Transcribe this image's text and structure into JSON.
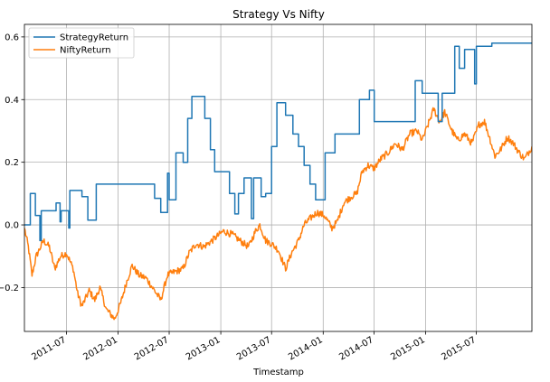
{
  "chart_data": {
    "type": "line",
    "title": "Strategy Vs Nifty",
    "xlabel": "Timestamp",
    "ylabel": "",
    "xlim": [
      "2011-02-01",
      "2016-01-15"
    ],
    "ylim": [
      -0.34,
      0.64
    ],
    "grid": true,
    "legend_position": "top-left",
    "x_tick_labels": [
      "2011-07",
      "2012-01",
      "2012-07",
      "2013-01",
      "2013-07",
      "2014-01",
      "2014-07",
      "2015-01",
      "2015-07"
    ],
    "x_tick_dates": [
      "2011-07-01",
      "2012-01-01",
      "2012-07-01",
      "2013-01-01",
      "2013-07-01",
      "2014-01-01",
      "2014-07-01",
      "2015-01-01",
      "2015-07-01"
    ],
    "y_ticks": [
      -0.2,
      0.0,
      0.2,
      0.4,
      0.6
    ],
    "y_tick_labels": [
      "−0.2",
      "0.0",
      "0.2",
      "0.4",
      "0.6"
    ],
    "series": [
      {
        "name": "StrategyReturn",
        "color": "#1f77b4",
        "step": true,
        "points": [
          [
            "2011-02-01",
            0.0
          ],
          [
            "2011-02-22",
            0.1
          ],
          [
            "2011-03-12",
            0.03
          ],
          [
            "2011-03-28",
            -0.05
          ],
          [
            "2011-04-02",
            0.045
          ],
          [
            "2011-05-25",
            0.07
          ],
          [
            "2011-06-08",
            0.01
          ],
          [
            "2011-06-12",
            0.045
          ],
          [
            "2011-06-30",
            0.045
          ],
          [
            "2011-07-09",
            -0.01
          ],
          [
            "2011-07-13",
            0.11
          ],
          [
            "2011-08-25",
            0.09
          ],
          [
            "2011-09-15",
            0.015
          ],
          [
            "2011-10-15",
            0.13
          ],
          [
            "2012-05-10",
            0.085
          ],
          [
            "2012-06-01",
            0.04
          ],
          [
            "2012-06-25",
            0.165
          ],
          [
            "2012-07-01",
            0.08
          ],
          [
            "2012-07-25",
            0.23
          ],
          [
            "2012-08-20",
            0.2
          ],
          [
            "2012-09-05",
            0.34
          ],
          [
            "2012-09-20",
            0.41
          ],
          [
            "2012-11-05",
            0.34
          ],
          [
            "2012-11-25",
            0.24
          ],
          [
            "2012-12-10",
            0.17
          ],
          [
            "2013-02-01",
            0.1
          ],
          [
            "2013-02-20",
            0.035
          ],
          [
            "2013-03-05",
            0.1
          ],
          [
            "2013-03-25",
            0.15
          ],
          [
            "2013-04-20",
            0.02
          ],
          [
            "2013-04-28",
            0.15
          ],
          [
            "2013-05-25",
            0.09
          ],
          [
            "2013-06-10",
            0.1
          ],
          [
            "2013-07-01",
            0.25
          ],
          [
            "2013-07-20",
            0.39
          ],
          [
            "2013-08-20",
            0.35
          ],
          [
            "2013-09-15",
            0.29
          ],
          [
            "2013-10-05",
            0.25
          ],
          [
            "2013-10-25",
            0.19
          ],
          [
            "2013-11-15",
            0.13
          ],
          [
            "2013-12-05",
            0.08
          ],
          [
            "2014-01-08",
            0.23
          ],
          [
            "2014-02-12",
            0.29
          ],
          [
            "2014-05-10",
            0.4
          ],
          [
            "2014-06-15",
            0.43
          ],
          [
            "2014-07-02",
            0.33
          ],
          [
            "2014-10-10",
            0.33
          ],
          [
            "2014-11-25",
            0.46
          ],
          [
            "2014-12-20",
            0.42
          ],
          [
            "2015-02-15",
            0.33
          ],
          [
            "2015-03-01",
            0.42
          ],
          [
            "2015-04-15",
            0.57
          ],
          [
            "2015-05-01",
            0.5
          ],
          [
            "2015-05-20",
            0.56
          ],
          [
            "2015-06-25",
            0.45
          ],
          [
            "2015-07-01",
            0.57
          ],
          [
            "2015-08-25",
            0.58
          ],
          [
            "2016-01-15",
            0.58
          ]
        ]
      },
      {
        "name": "NiftyReturn",
        "color": "#ff7f0e",
        "step": false,
        "noise_amplitude": 0.022,
        "points": [
          [
            "2011-02-01",
            -0.01
          ],
          [
            "2011-02-15",
            -0.07
          ],
          [
            "2011-02-28",
            -0.16
          ],
          [
            "2011-03-15",
            -0.1
          ],
          [
            "2011-04-10",
            -0.05
          ],
          [
            "2011-05-01",
            -0.07
          ],
          [
            "2011-05-20",
            -0.14
          ],
          [
            "2011-06-10",
            -0.1
          ],
          [
            "2011-07-01",
            -0.09
          ],
          [
            "2011-07-25",
            -0.14
          ],
          [
            "2011-08-10",
            -0.22
          ],
          [
            "2011-08-25",
            -0.26
          ],
          [
            "2011-09-20",
            -0.21
          ],
          [
            "2011-10-10",
            -0.24
          ],
          [
            "2011-10-28",
            -0.2
          ],
          [
            "2011-11-20",
            -0.27
          ],
          [
            "2011-12-20",
            -0.3
          ],
          [
            "2012-01-10",
            -0.25
          ],
          [
            "2012-02-01",
            -0.18
          ],
          [
            "2012-02-20",
            -0.13
          ],
          [
            "2012-03-15",
            -0.16
          ],
          [
            "2012-04-10",
            -0.17
          ],
          [
            "2012-05-10",
            -0.21
          ],
          [
            "2012-06-01",
            -0.24
          ],
          [
            "2012-06-25",
            -0.16
          ],
          [
            "2012-07-20",
            -0.15
          ],
          [
            "2012-08-20",
            -0.14
          ],
          [
            "2012-09-10",
            -0.09
          ],
          [
            "2012-10-05",
            -0.06
          ],
          [
            "2012-11-01",
            -0.07
          ],
          [
            "2012-12-01",
            -0.05
          ],
          [
            "2013-01-10",
            -0.02
          ],
          [
            "2013-02-10",
            -0.03
          ],
          [
            "2013-03-10",
            -0.05
          ],
          [
            "2013-04-10",
            -0.07
          ],
          [
            "2013-05-05",
            -0.02
          ],
          [
            "2013-05-20",
            0.0
          ],
          [
            "2013-06-10",
            -0.05
          ],
          [
            "2013-07-01",
            -0.06
          ],
          [
            "2013-07-25",
            -0.08
          ],
          [
            "2013-08-20",
            -0.14
          ],
          [
            "2013-09-10",
            -0.09
          ],
          [
            "2013-10-05",
            -0.05
          ],
          [
            "2013-10-25",
            0.0
          ],
          [
            "2013-11-15",
            0.02
          ],
          [
            "2013-12-10",
            0.04
          ],
          [
            "2014-01-05",
            0.03
          ],
          [
            "2014-02-01",
            -0.01
          ],
          [
            "2014-02-20",
            0.01
          ],
          [
            "2014-03-15",
            0.07
          ],
          [
            "2014-04-10",
            0.09
          ],
          [
            "2014-05-01",
            0.1
          ],
          [
            "2014-05-20",
            0.17
          ],
          [
            "2014-06-10",
            0.19
          ],
          [
            "2014-07-01",
            0.18
          ],
          [
            "2014-07-25",
            0.21
          ],
          [
            "2014-08-20",
            0.23
          ],
          [
            "2014-09-15",
            0.26
          ],
          [
            "2014-10-10",
            0.24
          ],
          [
            "2014-11-05",
            0.29
          ],
          [
            "2014-12-01",
            0.3
          ],
          [
            "2014-12-20",
            0.27
          ],
          [
            "2015-01-10",
            0.32
          ],
          [
            "2015-01-30",
            0.37
          ],
          [
            "2015-02-20",
            0.33
          ],
          [
            "2015-03-10",
            0.36
          ],
          [
            "2015-04-05",
            0.3
          ],
          [
            "2015-04-25",
            0.27
          ],
          [
            "2015-05-20",
            0.29
          ],
          [
            "2015-06-15",
            0.26
          ],
          [
            "2015-07-10",
            0.32
          ],
          [
            "2015-07-30",
            0.33
          ],
          [
            "2015-08-20",
            0.27
          ],
          [
            "2015-09-05",
            0.22
          ],
          [
            "2015-09-25",
            0.24
          ],
          [
            "2015-10-20",
            0.28
          ],
          [
            "2015-11-10",
            0.26
          ],
          [
            "2015-12-01",
            0.23
          ],
          [
            "2015-12-20",
            0.21
          ],
          [
            "2016-01-15",
            0.25
          ]
        ]
      }
    ]
  }
}
